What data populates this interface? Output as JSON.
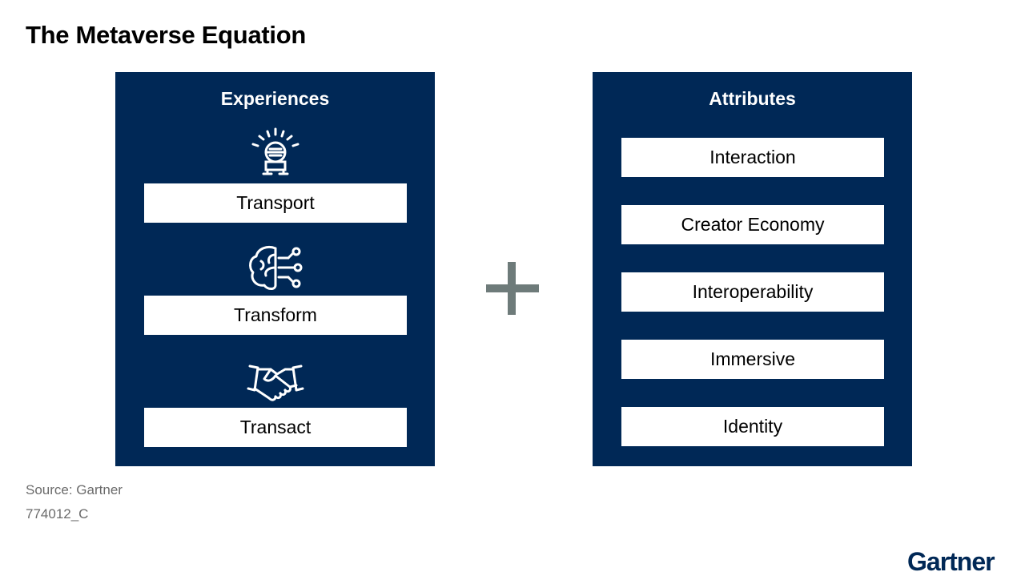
{
  "title": "The Metaverse Equation",
  "experiences": {
    "heading": "Experiences",
    "items": [
      {
        "label": "Transport",
        "icon": "headset-icon"
      },
      {
        "label": "Transform",
        "icon": "brain-network-icon"
      },
      {
        "label": "Transact",
        "icon": "handshake-icon"
      }
    ]
  },
  "operator": "+",
  "attributes": {
    "heading": "Attributes",
    "items": [
      {
        "label": "Interaction"
      },
      {
        "label": "Creator Economy"
      },
      {
        "label": "Interoperability"
      },
      {
        "label": "Immersive"
      },
      {
        "label": "Identity"
      }
    ]
  },
  "footer": {
    "source": "Source: Gartner",
    "doc_id": "774012_C"
  },
  "logo": "Gartner",
  "colors": {
    "panel": "#002856",
    "plus": "#6e7b7a",
    "footer_text": "#6b6b6b"
  }
}
